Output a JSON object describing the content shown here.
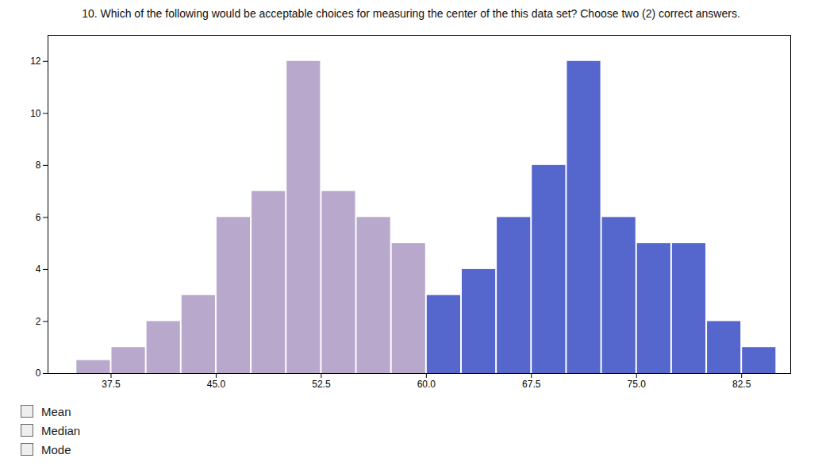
{
  "chart_data": {
    "type": "histogram",
    "title": "10. Which of the following would be acceptable choices for measuring the center of the this data set? Choose two (2) correct answers.",
    "bins": [
      35,
      37.5,
      40,
      42.5,
      45,
      47.5,
      50,
      52.5,
      55,
      57.5,
      60,
      62.5,
      65,
      67.5,
      70,
      72.5,
      75,
      77.5,
      80,
      82.5,
      85
    ],
    "values": [
      0.5,
      1,
      2,
      3,
      6,
      7,
      12,
      7,
      6,
      5,
      3,
      4,
      6,
      8,
      12,
      6,
      5,
      5,
      2,
      1
    ],
    "colors": [
      "#b8a8cc",
      "#b8a8cc",
      "#b8a8cc",
      "#b8a8cc",
      "#b8a8cc",
      "#b8a8cc",
      "#b8a8cc",
      "#b8a8cc",
      "#b8a8cc",
      "#b8a8cc",
      "#5566cc",
      "#5566cc",
      "#5566cc",
      "#5566cc",
      "#5566cc",
      "#5566cc",
      "#5566cc",
      "#5566cc",
      "#5566cc",
      "#5566cc"
    ],
    "xlim": [
      33,
      86
    ],
    "ylim": [
      0,
      13
    ],
    "xticks": [
      37.5,
      {
        "value": 45,
        "label": "45.0"
      },
      52.5,
      {
        "value": 60,
        "label": "60.0"
      },
      67.5,
      {
        "value": 75,
        "label": "75.0"
      },
      82.5
    ],
    "yticks": [
      0,
      2,
      4,
      6,
      8,
      10,
      12
    ],
    "grid": false,
    "annotations": [
      "Mean",
      "Median",
      "Mode"
    ]
  }
}
